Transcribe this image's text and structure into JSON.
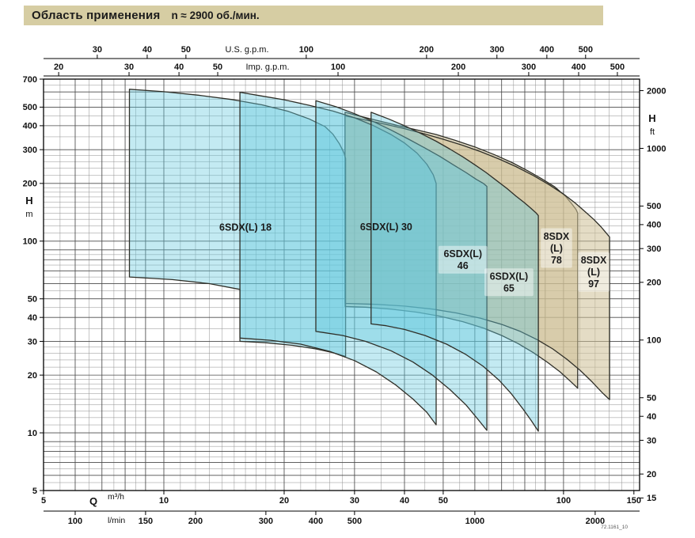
{
  "title": {
    "main": "Область применения",
    "speed": "n ≈ 2900 об./мин."
  },
  "footnote": "72.1161_10",
  "chart_data": {
    "type": "area",
    "title": "Область применения n ≈ 2900 об./мин.",
    "grid": true,
    "scales": {
      "x": {
        "kind": "log",
        "unit": "m³/h",
        "range": [
          5,
          155
        ]
      },
      "y": {
        "kind": "log",
        "unit": "m",
        "range": [
          5,
          700
        ]
      }
    },
    "axes": {
      "us_gpm": {
        "label": "U.S. g.p.m.",
        "factor_per_m3h": 4.4029,
        "ticks": [
          30,
          40,
          50,
          100,
          200,
          300,
          400,
          500
        ]
      },
      "imp_gpm": {
        "label": "Imp. g.p.m.",
        "factor_per_m3h": 3.6662,
        "ticks": [
          20,
          30,
          40,
          50,
          100,
          200,
          300,
          400,
          500
        ]
      },
      "q_m3h": {
        "label_sym": "Q",
        "label_unit": "m³/h",
        "ticks": [
          5,
          10,
          20,
          30,
          40,
          50,
          100,
          150
        ]
      },
      "q_lmin": {
        "label_unit": "l/min",
        "factor_per_m3h": 16.6667,
        "ticks": [
          100,
          150,
          200,
          300,
          400,
          500,
          1000,
          2000
        ]
      },
      "h_m": {
        "label_sym": "H",
        "label_unit": "m",
        "ticks": [
          700,
          500,
          400,
          300,
          200,
          100,
          50,
          40,
          30,
          20,
          10,
          5
        ]
      },
      "h_ft": {
        "label_sym": "H",
        "label_unit": "ft",
        "factor_per_m": 3.2808,
        "ticks": [
          2000,
          1000,
          500,
          400,
          300,
          200,
          100,
          50,
          40,
          30,
          20,
          15
        ]
      }
    },
    "style": {
      "title_bg": "#d6cda3",
      "frame": "#000000",
      "grid_minor": "#8f8f8f",
      "grid_major": "#4a4a4a",
      "region_stroke": "#2f2f28",
      "blue_fill": "#62c8de",
      "blue_opacity": 0.38,
      "beige_fill": "#cdc096",
      "beige_opacity": 0.55,
      "label_color": "#1b1b1b"
    },
    "regions": [
      {
        "name": "8SDX (L) 78",
        "color": "beige",
        "points": [
          [
            28.4,
            470
          ],
          [
            31,
            448
          ],
          [
            34.5,
            424
          ],
          [
            38.3,
            402
          ],
          [
            43,
            380
          ],
          [
            48,
            360
          ],
          [
            53.5,
            336
          ],
          [
            60,
            310
          ],
          [
            67,
            283
          ],
          [
            74,
            258
          ],
          [
            81,
            234
          ],
          [
            88,
            212
          ],
          [
            95,
            192
          ],
          [
            101,
            172
          ],
          [
            105,
            156
          ],
          [
            107.5,
            146
          ],
          [
            108.5,
            140
          ],
          [
            108.5,
            17.1
          ],
          [
            104,
            18.6
          ],
          [
            98,
            20.8
          ],
          [
            91,
            23.4
          ],
          [
            84,
            26.2
          ],
          [
            77,
            29.2
          ],
          [
            70,
            32.2
          ],
          [
            63,
            35.2
          ],
          [
            56,
            38
          ],
          [
            49,
            40.6
          ],
          [
            43,
            42.6
          ],
          [
            37,
            44.2
          ],
          [
            32,
            45.2
          ],
          [
            28.4,
            45.6
          ]
        ]
      },
      {
        "name": "8SDX (L) 97",
        "color": "beige",
        "points": [
          [
            28.4,
            450
          ],
          [
            32,
            428
          ],
          [
            36,
            406
          ],
          [
            40,
            386
          ],
          [
            45,
            362
          ],
          [
            50,
            340
          ],
          [
            56,
            316
          ],
          [
            62,
            293
          ],
          [
            69,
            268
          ],
          [
            76,
            245
          ],
          [
            84,
            220
          ],
          [
            92,
            197
          ],
          [
            100,
            176
          ],
          [
            107,
            158
          ],
          [
            113,
            143
          ],
          [
            119,
            130
          ],
          [
            124,
            119
          ],
          [
            128,
            110
          ],
          [
            130.4,
            105
          ],
          [
            130.4,
            14.9
          ],
          [
            125,
            16.2
          ],
          [
            118,
            18.4
          ],
          [
            110,
            21.2
          ],
          [
            102,
            24.2
          ],
          [
            94,
            27.4
          ],
          [
            86,
            30.6
          ],
          [
            78,
            33.8
          ],
          [
            70,
            36.8
          ],
          [
            62,
            39.6
          ],
          [
            54,
            42.2
          ],
          [
            47,
            44.2
          ],
          [
            40,
            45.8
          ],
          [
            34,
            46.8
          ],
          [
            28.4,
            47.3
          ]
        ]
      },
      {
        "name": "6SDX(L) 18",
        "color": "blue",
        "points": [
          [
            8.2,
            620
          ],
          [
            10,
            602
          ],
          [
            12.2,
            577
          ],
          [
            14.8,
            548
          ],
          [
            17.6,
            514
          ],
          [
            20.5,
            475
          ],
          [
            23.1,
            434
          ],
          [
            25.3,
            396
          ],
          [
            26.5,
            361
          ],
          [
            27.5,
            322
          ],
          [
            28.2,
            290
          ],
          [
            28.5,
            270
          ],
          [
            28.5,
            25
          ],
          [
            26.5,
            26.2
          ],
          [
            24,
            27.4
          ],
          [
            21,
            28.6
          ],
          [
            18,
            29.5
          ],
          [
            15.6,
            30
          ],
          [
            15.5,
            30
          ],
          [
            15.5,
            56
          ],
          [
            13,
            60
          ],
          [
            10.5,
            63
          ],
          [
            8.2,
            65
          ]
        ]
      },
      {
        "name": "6SDX(L) 30",
        "color": "blue",
        "points": [
          [
            15.5,
            598
          ],
          [
            17.5,
            572
          ],
          [
            20,
            546
          ],
          [
            23,
            512
          ],
          [
            26.5,
            477
          ],
          [
            30,
            440
          ],
          [
            33.5,
            400
          ],
          [
            37,
            360
          ],
          [
            40,
            325
          ],
          [
            43,
            288
          ],
          [
            45.5,
            252
          ],
          [
            47.2,
            222
          ],
          [
            48,
            200
          ],
          [
            48,
            11
          ],
          [
            45.5,
            12.8
          ],
          [
            42,
            15
          ],
          [
            38,
            17.8
          ],
          [
            34,
            20.8
          ],
          [
            30,
            23.8
          ],
          [
            26,
            26.6
          ],
          [
            22,
            29
          ],
          [
            18.5,
            30.4
          ],
          [
            15.5,
            31.2
          ]
        ]
      },
      {
        "name": "6SDX(L) 46",
        "color": "blue",
        "points": [
          [
            24,
            540
          ],
          [
            27,
            502
          ],
          [
            30,
            462
          ],
          [
            33.5,
            420
          ],
          [
            37,
            380
          ],
          [
            41,
            340
          ],
          [
            45,
            306
          ],
          [
            49,
            277
          ],
          [
            53,
            250
          ],
          [
            57,
            228
          ],
          [
            60.5,
            210
          ],
          [
            63,
            200
          ],
          [
            64.3,
            193
          ],
          [
            64.3,
            10.3
          ],
          [
            61,
            11.8
          ],
          [
            57,
            14
          ],
          [
            52,
            16.8
          ],
          [
            47,
            20
          ],
          [
            42,
            23.4
          ],
          [
            37,
            26.8
          ],
          [
            32,
            30
          ],
          [
            28,
            32.2
          ],
          [
            25,
            33.4
          ],
          [
            24,
            33.8
          ]
        ]
      },
      {
        "name": "6SDX(L) 65",
        "color": "blue",
        "points": [
          [
            33,
            470
          ],
          [
            36.5,
            434
          ],
          [
            40,
            400
          ],
          [
            44,
            364
          ],
          [
            48,
            332
          ],
          [
            52,
            302
          ],
          [
            56,
            275
          ],
          [
            60,
            250
          ],
          [
            64,
            228
          ],
          [
            68,
            207
          ],
          [
            72,
            189
          ],
          [
            76,
            172
          ],
          [
            80,
            158
          ],
          [
            83,
            148
          ],
          [
            85.5,
            140
          ],
          [
            86.5,
            136
          ],
          [
            86.5,
            10.2
          ],
          [
            83,
            11.6
          ],
          [
            79,
            13.4
          ],
          [
            74,
            16
          ],
          [
            69,
            18.8
          ],
          [
            63,
            22.2
          ],
          [
            57,
            25.6
          ],
          [
            51,
            29
          ],
          [
            45,
            32.2
          ],
          [
            40,
            34.6
          ],
          [
            36,
            36.2
          ],
          [
            33,
            37
          ]
        ]
      }
    ],
    "region_labels": [
      {
        "lines": [
          "6SDX(L) 18"
        ],
        "q": 16,
        "h": 118,
        "chip": false
      },
      {
        "lines": [
          "6SDX(L) 30"
        ],
        "q": 36,
        "h": 119,
        "chip": false
      },
      {
        "lines": [
          "6SDX(L)",
          "46"
        ],
        "q": 56,
        "h": 80,
        "chip": true
      },
      {
        "lines": [
          "6SDX(L)",
          "65"
        ],
        "q": 73,
        "h": 61,
        "chip": true
      },
      {
        "lines": [
          "8SDX",
          "(L)",
          "78"
        ],
        "q": 96,
        "h": 92,
        "chip": true
      },
      {
        "lines": [
          "8SDX",
          "(L)",
          "97"
        ],
        "q": 119,
        "h": 69,
        "chip": true
      }
    ]
  }
}
